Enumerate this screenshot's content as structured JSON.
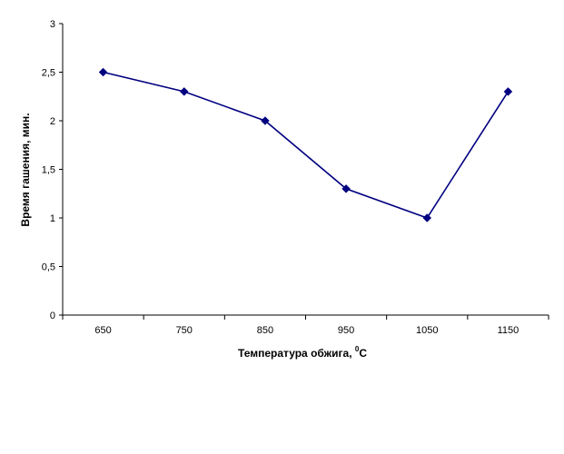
{
  "chart_data": {
    "type": "line",
    "title": "",
    "xlabel": "Температура обжига, ",
    "xlabel_sup": "0",
    "xlabel_unit": "С",
    "ylabel": "Время гашения, мин.",
    "categories": [
      "650",
      "750",
      "850",
      "950",
      "1050",
      "1150"
    ],
    "y_ticks": [
      "0",
      "0,5",
      "1",
      "1,5",
      "2",
      "2,5",
      "3"
    ],
    "ylim": [
      0,
      3
    ],
    "grid": false,
    "legend": "none",
    "series": [
      {
        "values": [
          2.5,
          2.3,
          2.0,
          1.3,
          1.0,
          2.3
        ],
        "color": "#000080",
        "marker": "diamond"
      }
    ]
  }
}
